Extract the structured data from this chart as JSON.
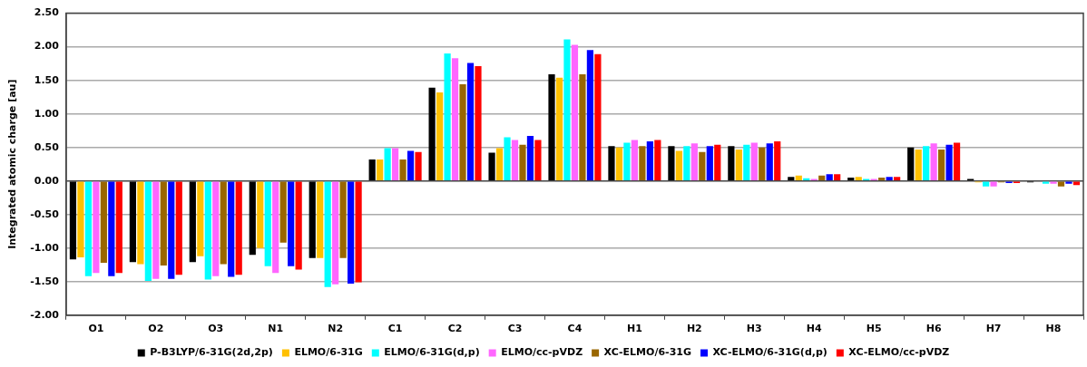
{
  "chart_data": {
    "type": "bar",
    "ylabel": "Integrated atomic charge [au]",
    "categories": [
      "O1",
      "O2",
      "O3",
      "N1",
      "N2",
      "C1",
      "C2",
      "C3",
      "C4",
      "H1",
      "H2",
      "H3",
      "H4",
      "H5",
      "H6",
      "H7",
      "H8"
    ],
    "series": [
      {
        "name": "P-B3LYP/6-31G(2d,2p)",
        "color": "#000000",
        "values": [
          -1.17,
          -1.21,
          -1.21,
          -1.1,
          -1.15,
          0.32,
          1.39,
          0.42,
          1.59,
          0.52,
          0.52,
          0.52,
          0.06,
          0.05,
          0.5,
          0.03,
          -0.02
        ]
      },
      {
        "name": "ELMO/6-31G",
        "color": "#ffc000",
        "values": [
          -1.14,
          -1.24,
          -1.12,
          -1.0,
          -1.15,
          0.32,
          1.32,
          0.49,
          1.54,
          0.5,
          0.45,
          0.47,
          0.08,
          0.06,
          0.47,
          -0.02,
          null
        ]
      },
      {
        "name": "ELMO/6-31G(d,p)",
        "color": "#00ffff",
        "values": [
          -1.42,
          -1.49,
          -1.47,
          -1.27,
          -1.58,
          0.49,
          1.9,
          0.65,
          2.11,
          0.57,
          0.52,
          0.54,
          0.04,
          0.03,
          0.52,
          -0.08,
          -0.04
        ]
      },
      {
        "name": "ELMO/cc-pVDZ",
        "color": "#ff66ff",
        "values": [
          -1.37,
          -1.46,
          -1.42,
          -1.37,
          -1.54,
          0.49,
          1.83,
          0.61,
          2.03,
          0.61,
          0.56,
          0.57,
          0.03,
          0.03,
          0.56,
          -0.08,
          -0.04
        ]
      },
      {
        "name": "XC-ELMO/6-31G",
        "color": "#996600",
        "values": [
          -1.22,
          -1.26,
          -1.24,
          -0.92,
          -1.15,
          0.32,
          1.44,
          0.54,
          1.59,
          0.52,
          0.43,
          0.5,
          0.08,
          0.05,
          0.47,
          -0.02,
          -0.08
        ]
      },
      {
        "name": "XC-ELMO/6-31G(d,p)",
        "color": "#0000ff",
        "values": [
          -1.42,
          -1.46,
          -1.43,
          -1.27,
          -1.53,
          0.45,
          1.76,
          0.67,
          1.95,
          0.59,
          0.52,
          0.56,
          0.1,
          0.06,
          0.54,
          -0.03,
          -0.04
        ]
      },
      {
        "name": "XC-ELMO/cc-pVDZ",
        "color": "#ff0000",
        "values": [
          -1.37,
          -1.4,
          -1.4,
          -1.32,
          -1.51,
          0.43,
          1.71,
          0.61,
          1.89,
          0.61,
          0.54,
          0.59,
          0.1,
          0.06,
          0.57,
          -0.03,
          -0.06
        ]
      }
    ],
    "ylim": [
      -2.0,
      2.5
    ],
    "yticks": [
      {
        "value": -2,
        "label": "-2.00"
      },
      {
        "value": -1.5,
        "label": "-1.50"
      },
      {
        "value": -1,
        "label": "-1.00"
      },
      {
        "value": -0.5,
        "label": "-0.50"
      },
      {
        "value": 0,
        "label": "0.00"
      },
      {
        "value": 0.5,
        "label": "0.50"
      },
      {
        "value": 1,
        "label": "1.00"
      },
      {
        "value": 1.5,
        "label": "1.50"
      },
      {
        "value": 2,
        "label": "2.00"
      },
      {
        "value": 2.5,
        "label": "2.50"
      }
    ],
    "grid": "y",
    "legend": "bottom"
  }
}
